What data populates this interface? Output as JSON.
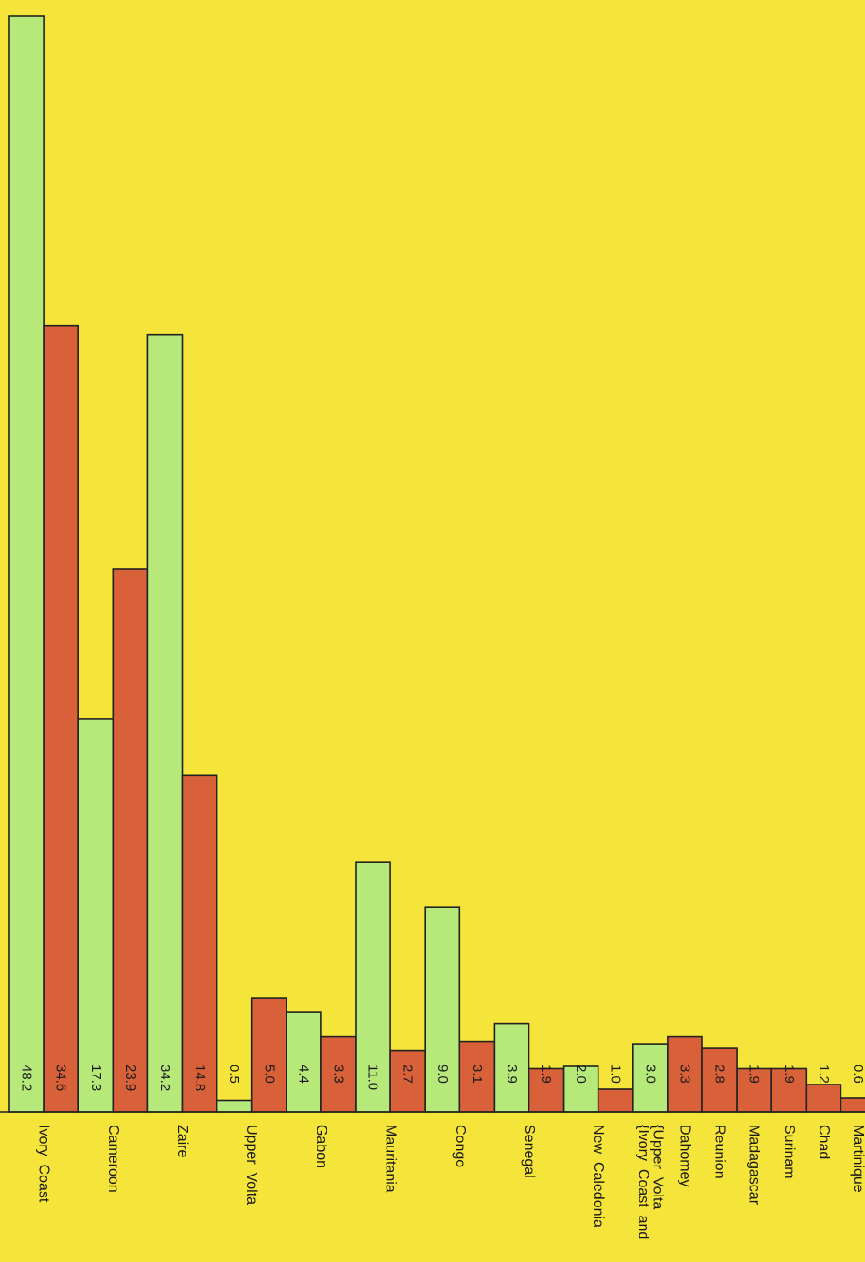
{
  "colors": {
    "background": "#f5e43a",
    "green": "#b6e87a",
    "red": "#d9613a",
    "outline": "#222222",
    "label": "#1a1a1a"
  },
  "chart_data": {
    "type": "bar",
    "orientation": "rotated-90-clockwise",
    "title": "",
    "xlabel": "",
    "ylabel": "",
    "ylim": [
      0,
      48.2
    ],
    "grid": false,
    "legend": "none",
    "bars": [
      {
        "name": "bar-ivory-coast-green",
        "value": 48.2,
        "label": "48.2",
        "color": "green"
      },
      {
        "name": "bar-ivory-coast-red",
        "value": 34.6,
        "label": "34.6",
        "color": "red"
      },
      {
        "name": "bar-cameroon-green",
        "value": 17.3,
        "label": "17.3",
        "color": "green"
      },
      {
        "name": "bar-cameroon-red",
        "value": 23.9,
        "label": "23.9",
        "color": "red"
      },
      {
        "name": "bar-zaire-green",
        "value": 34.2,
        "label": "34.2",
        "color": "green"
      },
      {
        "name": "bar-zaire-red",
        "value": 14.8,
        "label": "14.8",
        "color": "red"
      },
      {
        "name": "bar-upper-volta-green",
        "value": 0.5,
        "label": "0.5",
        "color": "green"
      },
      {
        "name": "bar-upper-volta-red",
        "value": 5.0,
        "label": "5.0",
        "color": "red"
      },
      {
        "name": "bar-gabon-green",
        "value": 4.4,
        "label": "4.4",
        "color": "green"
      },
      {
        "name": "bar-gabon-red",
        "value": 3.3,
        "label": "3.3",
        "color": "red"
      },
      {
        "name": "bar-mauritania-green",
        "value": 11.0,
        "label": "11.0",
        "color": "green"
      },
      {
        "name": "bar-mauritania-red",
        "value": 2.7,
        "label": "2.7",
        "color": "red"
      },
      {
        "name": "bar-congo-green",
        "value": 9.0,
        "label": "9.0",
        "color": "green"
      },
      {
        "name": "bar-congo-red",
        "value": 3.1,
        "label": "3.1",
        "color": "red"
      },
      {
        "name": "bar-senegal-green",
        "value": 3.9,
        "label": "3.9",
        "color": "green"
      },
      {
        "name": "bar-senegal-red",
        "value": 1.9,
        "label": "1.9",
        "color": "red"
      },
      {
        "name": "bar-new-caledonia-green",
        "value": 2.0,
        "label": "2.0",
        "color": "green"
      },
      {
        "name": "bar-new-caledonia-red",
        "value": 1.0,
        "label": "1.0",
        "color": "red"
      },
      {
        "name": "bar-ivory-coast-upper-volta-green",
        "value": 3.0,
        "label": "3.0",
        "color": "green"
      },
      {
        "name": "bar-dahomey-red",
        "value": 3.3,
        "label": "3.3",
        "color": "red"
      },
      {
        "name": "bar-reunion-red",
        "value": 2.8,
        "label": "2.8",
        "color": "red"
      },
      {
        "name": "bar-madagascar-red",
        "value": 1.9,
        "label": "1.9",
        "color": "red"
      },
      {
        "name": "bar-surinam-red",
        "value": 1.9,
        "label": "1.9",
        "color": "red"
      },
      {
        "name": "bar-chad-red",
        "value": 1.2,
        "label": "1.2",
        "color": "red"
      },
      {
        "name": "bar-martinique-red",
        "value": 0.6,
        "label": "0.6",
        "color": "red"
      }
    ],
    "category_labels": [
      {
        "name": "label-ivory-coast",
        "text": "Ivory  Coast",
        "span": [
          0,
          1
        ]
      },
      {
        "name": "label-cameroon",
        "text": "Cameroon",
        "span": [
          2,
          3
        ]
      },
      {
        "name": "label-zaire",
        "text": "Zaire",
        "span": [
          4,
          5
        ]
      },
      {
        "name": "label-upper-volta",
        "text": "Upper  Volta",
        "span": [
          6,
          7
        ]
      },
      {
        "name": "label-gabon",
        "text": "Gabon",
        "span": [
          8,
          9
        ]
      },
      {
        "name": "label-mauritania",
        "text": "Mauritania",
        "span": [
          10,
          11
        ]
      },
      {
        "name": "label-congo",
        "text": "Congo",
        "span": [
          12,
          13
        ]
      },
      {
        "name": "label-senegal",
        "text": "Senegal",
        "span": [
          14,
          15
        ]
      },
      {
        "name": "label-new-caledonia",
        "text": "New  Caledonia",
        "span": [
          16,
          17
        ]
      },
      {
        "name": "label-ivory-coast-and",
        "text": "{Ivory  Coast  and",
        "span": [
          18,
          18
        ],
        "line": 0
      },
      {
        "name": "label-upper-volta-2",
        "text": "{Upper  Volta",
        "span": [
          18,
          18
        ],
        "line": 1
      },
      {
        "name": "label-dahomey",
        "text": "Dahomey",
        "span": [
          19,
          19
        ]
      },
      {
        "name": "label-reunion",
        "text": "Reunion",
        "span": [
          20,
          20
        ]
      },
      {
        "name": "label-madagascar",
        "text": "Madagascar",
        "span": [
          21,
          21
        ]
      },
      {
        "name": "label-surinam",
        "text": "Surinam",
        "span": [
          22,
          22
        ]
      },
      {
        "name": "label-chad",
        "text": "Chad",
        "span": [
          23,
          23
        ]
      },
      {
        "name": "label-martinique",
        "text": "Martinique",
        "span": [
          24,
          24
        ]
      }
    ]
  }
}
